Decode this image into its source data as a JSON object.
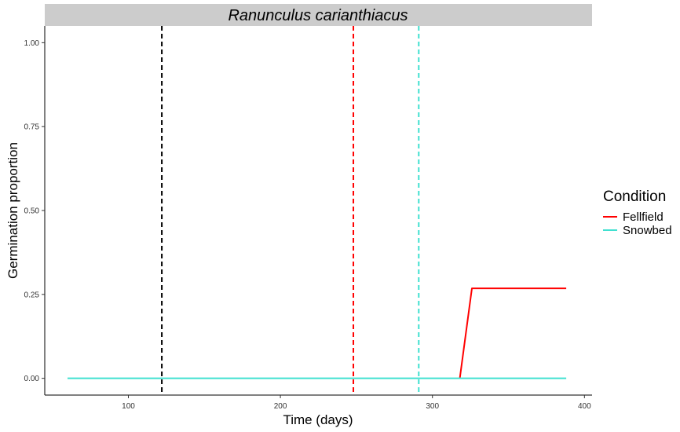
{
  "chart_data": {
    "type": "line",
    "title": "Ranunculus carianthiacus",
    "xlabel": "Time (days)",
    "ylabel": "Germination proportion",
    "xlim": [
      45,
      405
    ],
    "ylim": [
      -0.05,
      1.05
    ],
    "x_ticks": [
      100,
      200,
      300,
      400
    ],
    "y_ticks": [
      0.0,
      0.25,
      0.5,
      0.75,
      1.0
    ],
    "y_tick_labels": [
      "0.00",
      "0.25",
      "0.50",
      "0.75",
      "1.00"
    ],
    "grid": false,
    "legend_title": "Condition",
    "legend_position": "right",
    "series": [
      {
        "name": "Fellfield",
        "color": "#FF0000",
        "points": [
          [
            318,
            0.0
          ],
          [
            326,
            0.268
          ],
          [
            388,
            0.268
          ]
        ]
      },
      {
        "name": "Snowbed",
        "color": "#40E0D0",
        "points": [
          [
            60,
            0.0
          ],
          [
            388,
            0.0
          ]
        ]
      }
    ],
    "vlines": [
      {
        "x": 122,
        "color": "#000000",
        "style": "dashed"
      },
      {
        "x": 248,
        "color": "#FF0000",
        "style": "dashed"
      },
      {
        "x": 291,
        "color": "#40E0D0",
        "style": "dashed"
      }
    ]
  }
}
